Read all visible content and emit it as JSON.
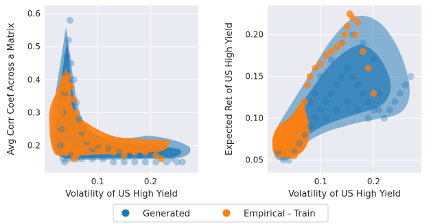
{
  "chart_data": [
    {
      "type": "scatter",
      "xlabel": "Volatility of US High Yield",
      "ylabel": "Avg Corr Coef Across a Matrix",
      "xlim": [
        0.0,
        0.29
      ],
      "ylim": [
        0.118,
        0.625
      ],
      "xticks": [
        0.1,
        0.2
      ],
      "yticks": [
        0.2,
        0.3,
        0.4,
        0.5,
        0.6
      ],
      "xtick_labels": [
        "0.1",
        "0.2"
      ],
      "ytick_labels": [
        "0.2",
        "0.3",
        "0.4",
        "0.5",
        "0.6"
      ],
      "grid": true,
      "series": [
        {
          "name": "Generated",
          "color": "#1f77b4",
          "x": [
            0.03,
            0.032,
            0.035,
            0.038,
            0.04,
            0.042,
            0.045,
            0.048,
            0.05,
            0.055,
            0.06,
            0.065,
            0.07,
            0.08,
            0.09,
            0.1,
            0.12,
            0.14,
            0.16,
            0.18,
            0.2,
            0.22,
            0.24,
            0.26,
            0.045,
            0.04,
            0.05,
            0.038,
            0.035,
            0.06,
            0.07,
            0.09,
            0.11,
            0.13,
            0.15,
            0.17,
            0.19,
            0.21,
            0.23,
            0.25
          ],
          "y": [
            0.2,
            0.25,
            0.3,
            0.36,
            0.42,
            0.47,
            0.52,
            0.58,
            0.45,
            0.4,
            0.33,
            0.28,
            0.24,
            0.21,
            0.19,
            0.2,
            0.19,
            0.18,
            0.17,
            0.17,
            0.18,
            0.17,
            0.16,
            0.15,
            0.16,
            0.17,
            0.17,
            0.15,
            0.16,
            0.16,
            0.16,
            0.16,
            0.16,
            0.15,
            0.15,
            0.15,
            0.15,
            0.15,
            0.15,
            0.15
          ]
        },
        {
          "name": "Empirical - Train",
          "color": "#ff7f0e",
          "x": [
            0.025,
            0.03,
            0.035,
            0.04,
            0.045,
            0.05,
            0.055,
            0.06,
            0.07,
            0.08,
            0.09,
            0.1,
            0.11,
            0.12,
            0.13,
            0.14,
            0.15,
            0.16,
            0.17,
            0.18,
            0.19,
            0.2,
            0.21,
            0.22,
            0.05,
            0.045,
            0.04,
            0.06,
            0.055,
            0.065
          ],
          "y": [
            0.28,
            0.3,
            0.33,
            0.37,
            0.41,
            0.38,
            0.34,
            0.3,
            0.25,
            0.22,
            0.2,
            0.21,
            0.19,
            0.22,
            0.18,
            0.2,
            0.17,
            0.19,
            0.18,
            0.2,
            0.18,
            0.19,
            0.17,
            0.16,
            0.25,
            0.2,
            0.18,
            0.17,
            0.16,
            0.18
          ]
        }
      ]
    },
    {
      "type": "scatter",
      "xlabel": "Volatility of US High Yield",
      "ylabel": "Expected Ret of US High Yield",
      "xlim": [
        0.0,
        0.29
      ],
      "ylim": [
        0.035,
        0.235
      ],
      "xticks": [
        0.1,
        0.2
      ],
      "yticks": [
        0.05,
        0.1,
        0.15,
        0.2
      ],
      "xtick_labels": [
        "0.1",
        "0.2"
      ],
      "ytick_labels": [
        "0.05",
        "0.10",
        "0.15",
        "0.20"
      ],
      "grid": true,
      "series": [
        {
          "name": "Generated",
          "color": "#1f77b4",
          "x": [
            0.02,
            0.03,
            0.04,
            0.05,
            0.06,
            0.07,
            0.08,
            0.09,
            0.1,
            0.11,
            0.12,
            0.13,
            0.14,
            0.15,
            0.16,
            0.17,
            0.18,
            0.19,
            0.2,
            0.21,
            0.22,
            0.23,
            0.24,
            0.25,
            0.26,
            0.27,
            0.1,
            0.12,
            0.14,
            0.16,
            0.18,
            0.2,
            0.11,
            0.13,
            0.15,
            0.17,
            0.19,
            0.21,
            0.09,
            0.08
          ],
          "y": [
            0.06,
            0.05,
            0.05,
            0.06,
            0.07,
            0.08,
            0.09,
            0.1,
            0.11,
            0.12,
            0.13,
            0.14,
            0.15,
            0.16,
            0.15,
            0.14,
            0.13,
            0.12,
            0.11,
            0.11,
            0.1,
            0.11,
            0.12,
            0.13,
            0.14,
            0.15,
            0.15,
            0.17,
            0.19,
            0.2,
            0.19,
            0.17,
            0.1,
            0.11,
            0.12,
            0.11,
            0.1,
            0.13,
            0.13,
            0.12
          ]
        },
        {
          "name": "Empirical - Train",
          "color": "#ff7f0e",
          "x": [
            0.015,
            0.02,
            0.025,
            0.03,
            0.035,
            0.04,
            0.045,
            0.05,
            0.055,
            0.06,
            0.065,
            0.07,
            0.075,
            0.08,
            0.09,
            0.1,
            0.11,
            0.12,
            0.13,
            0.14,
            0.15,
            0.16,
            0.17,
            0.18,
            0.19,
            0.155,
            0.165,
            0.145,
            0.2,
            0.05
          ],
          "y": [
            0.075,
            0.065,
            0.07,
            0.07,
            0.08,
            0.085,
            0.09,
            0.1,
            0.105,
            0.11,
            0.115,
            0.12,
            0.14,
            0.15,
            0.16,
            0.165,
            0.175,
            0.18,
            0.185,
            0.19,
            0.21,
            0.22,
            0.215,
            0.18,
            0.16,
            0.225,
            0.2,
            0.2,
            0.13,
            0.055
          ]
        }
      ]
    }
  ],
  "legend": {
    "placement": "bottom-center",
    "items": [
      {
        "label": "Generated",
        "color": "#1f77b4"
      },
      {
        "label": "Empirical - Train",
        "color": "#ff7f0e"
      }
    ]
  }
}
